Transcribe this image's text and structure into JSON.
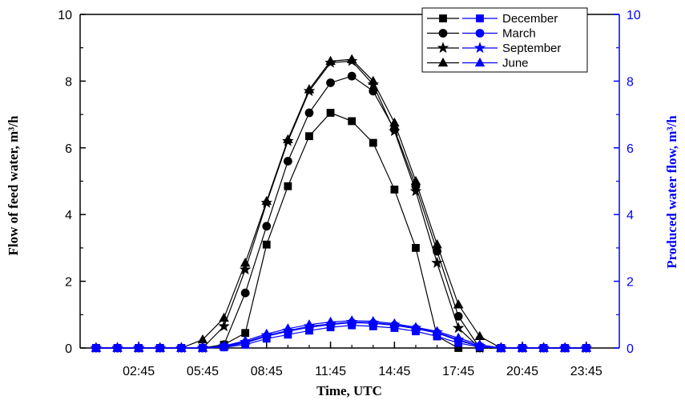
{
  "chart_data": {
    "type": "line",
    "xlabel": "Time, UTC",
    "ylabel_left": "Flow of feed water, m³/h",
    "ylabel_right": "Produced water flow, m³/h",
    "xtick_labels": [
      "02:45",
      "05:45",
      "08:45",
      "11:45",
      "14:45",
      "17:45",
      "20:45",
      "23:45"
    ],
    "ylim": [
      0,
      10
    ],
    "yticks": [
      "0",
      "2",
      "4",
      "6",
      "8",
      "10"
    ],
    "legend_position": "top-right",
    "x": [
      0.75,
      1.75,
      2.75,
      3.75,
      4.75,
      5.75,
      6.75,
      7.75,
      8.75,
      9.75,
      10.75,
      11.75,
      12.75,
      13.75,
      14.75,
      15.75,
      16.75,
      17.75,
      18.75,
      19.75,
      20.75,
      21.75,
      22.75,
      23.75
    ],
    "series": [
      {
        "name": "December",
        "marker": "square",
        "feed": [
          0,
          0,
          0,
          0,
          0,
          0,
          0.1,
          0.45,
          3.1,
          4.85,
          6.35,
          7.05,
          6.8,
          6.15,
          4.75,
          3.0,
          0.35,
          0,
          0,
          0,
          0,
          0,
          0,
          0
        ],
        "produced": [
          0,
          0,
          0,
          0,
          0,
          0,
          0.02,
          0.1,
          0.28,
          0.4,
          0.52,
          0.62,
          0.68,
          0.65,
          0.6,
          0.5,
          0.35,
          0.15,
          0.03,
          0,
          0,
          0,
          0,
          0
        ]
      },
      {
        "name": "March",
        "marker": "circle",
        "feed": [
          0,
          0,
          0,
          0,
          0,
          0,
          0.1,
          1.65,
          3.65,
          5.6,
          7.05,
          7.95,
          8.15,
          7.7,
          6.55,
          4.85,
          2.9,
          0.95,
          0,
          0,
          0,
          0,
          0,
          0
        ],
        "produced": [
          0,
          0,
          0,
          0,
          0,
          0,
          0.03,
          0.15,
          0.35,
          0.5,
          0.62,
          0.7,
          0.76,
          0.74,
          0.68,
          0.58,
          0.45,
          0.22,
          0.05,
          0,
          0,
          0,
          0,
          0
        ]
      },
      {
        "name": "September",
        "marker": "star",
        "feed": [
          0,
          0,
          0,
          0,
          0,
          0,
          0.65,
          2.35,
          4.35,
          6.2,
          7.7,
          8.55,
          8.6,
          7.9,
          6.5,
          4.7,
          2.55,
          0.6,
          0,
          0,
          0,
          0,
          0,
          0
        ],
        "produced": [
          0,
          0,
          0,
          0,
          0,
          0,
          0.05,
          0.18,
          0.38,
          0.52,
          0.65,
          0.72,
          0.78,
          0.76,
          0.7,
          0.6,
          0.47,
          0.25,
          0.06,
          0,
          0,
          0,
          0,
          0
        ]
      },
      {
        "name": "June",
        "marker": "triangle",
        "feed": [
          0,
          0,
          0,
          0,
          0,
          0.25,
          0.9,
          2.55,
          4.4,
          6.25,
          7.75,
          8.6,
          8.65,
          8.0,
          6.75,
          5.0,
          3.1,
          1.3,
          0.35,
          0,
          0,
          0,
          0,
          0
        ],
        "produced": [
          0,
          0,
          0,
          0,
          0,
          0,
          0.06,
          0.22,
          0.42,
          0.58,
          0.7,
          0.78,
          0.82,
          0.8,
          0.73,
          0.62,
          0.5,
          0.3,
          0.1,
          0,
          0,
          0,
          0,
          0
        ]
      }
    ],
    "colors": {
      "feed": "#000000",
      "produced": "#0000ff"
    }
  }
}
